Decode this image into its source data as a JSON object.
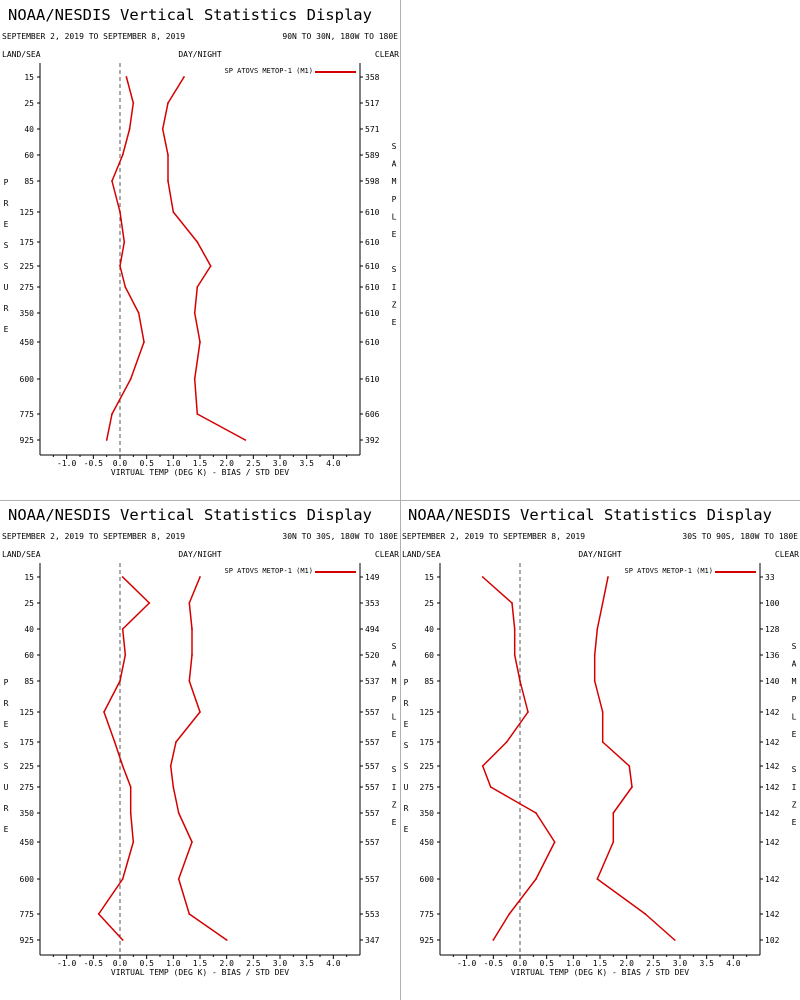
{
  "common": {
    "title": "NOAA/NESDIS Vertical Statistics Display",
    "date_range": "SEPTEMBER 2, 2019 TO SEPTEMBER 8, 2019",
    "land_sea": "LAND/SEA",
    "day_night": "DAY/NIGHT",
    "clear": "CLEAR",
    "legend": "SP ATOVS METOP-1 (M1)",
    "xlabel": "VIRTUAL TEMP (DEG K) - BIAS / STD DEV",
    "left_vertical": [
      "P",
      "R",
      "E",
      "S",
      "S",
      "U",
      "R",
      "E"
    ],
    "right_vertical": [
      "S",
      "A",
      "M",
      "P",
      "L",
      "E",
      "",
      "S",
      "I",
      "Z",
      "E"
    ],
    "series_color": "#d40000",
    "zero_line_color": "#555555"
  },
  "chart_data": [
    {
      "type": "line",
      "region": "90N TO 30N, 180W TO 180E",
      "pressure_levels": [
        15,
        25,
        40,
        60,
        85,
        125,
        175,
        225,
        275,
        350,
        450,
        600,
        775,
        925
      ],
      "pressure_labels": [
        "15",
        "25",
        "40",
        "60",
        "85",
        "125",
        "175",
        "225",
        "275",
        "350",
        "450",
        "600",
        "775",
        "925"
      ],
      "sample_size": [
        "358",
        "517",
        "571",
        "589",
        "598",
        "610",
        "610",
        "610",
        "610",
        "610",
        "610",
        "610",
        "606",
        "392"
      ],
      "x_ticks": [
        "-1.0",
        "-0.5",
        "0.0",
        "0.5",
        "1.0",
        "1.5",
        "2.0",
        "2.5",
        "3.0",
        "3.5",
        "4.0"
      ],
      "xlim": [
        -1.5,
        4.5
      ],
      "series": [
        {
          "name": "Bias",
          "values": [
            0.12,
            0.25,
            0.18,
            0.05,
            -0.15,
            0.0,
            0.08,
            0.0,
            0.1,
            0.35,
            0.45,
            0.2,
            -0.15,
            -0.25
          ]
        },
        {
          "name": "Std Dev",
          "values": [
            1.2,
            0.9,
            0.8,
            0.9,
            0.9,
            1.0,
            1.45,
            1.7,
            1.45,
            1.4,
            1.5,
            1.4,
            1.45,
            2.35
          ]
        }
      ]
    },
    {
      "type": "line",
      "region": "30N TO 30S, 180W TO 180E",
      "pressure_levels": [
        15,
        25,
        40,
        60,
        85,
        125,
        175,
        225,
        275,
        350,
        450,
        600,
        775,
        925
      ],
      "pressure_labels": [
        "15",
        "25",
        "40",
        "60",
        "85",
        "125",
        "175",
        "225",
        "275",
        "350",
        "450",
        "600",
        "775",
        "925"
      ],
      "sample_size": [
        "149",
        "353",
        "494",
        "520",
        "537",
        "557",
        "557",
        "557",
        "557",
        "557",
        "557",
        "557",
        "553",
        "347"
      ],
      "x_ticks": [
        "-1.0",
        "-0.5",
        "0.0",
        "0.5",
        "1.0",
        "1.5",
        "2.0",
        "2.5",
        "3.0",
        "3.5",
        "4.0"
      ],
      "xlim": [
        -1.5,
        4.5
      ],
      "series": [
        {
          "name": "Bias",
          "values": [
            0.05,
            0.55,
            0.05,
            0.1,
            0.0,
            -0.3,
            -0.1,
            0.05,
            0.2,
            0.2,
            0.25,
            0.05,
            -0.4,
            0.05
          ]
        },
        {
          "name": "Std Dev",
          "values": [
            1.5,
            1.3,
            1.35,
            1.35,
            1.3,
            1.5,
            1.05,
            0.95,
            1.0,
            1.1,
            1.35,
            1.1,
            1.3,
            2.0
          ]
        }
      ]
    },
    {
      "type": "line",
      "region": "30S TO 90S, 180W TO 180E",
      "pressure_levels": [
        15,
        25,
        40,
        60,
        85,
        125,
        175,
        225,
        275,
        350,
        450,
        600,
        775,
        925
      ],
      "pressure_labels": [
        "15",
        "25",
        "40",
        "60",
        "85",
        "125",
        "175",
        "225",
        "275",
        "350",
        "450",
        "600",
        "775",
        "925"
      ],
      "sample_size": [
        "33",
        "100",
        "128",
        "136",
        "140",
        "142",
        "142",
        "142",
        "142",
        "142",
        "142",
        "142",
        "142",
        "102"
      ],
      "x_ticks": [
        "-1.0",
        "-0.5",
        "0.0",
        "0.5",
        "1.0",
        "1.5",
        "2.0",
        "2.5",
        "3.0",
        "3.5",
        "4.0"
      ],
      "xlim": [
        -1.5,
        4.5
      ],
      "series": [
        {
          "name": "Bias",
          "values": [
            -0.7,
            -0.15,
            -0.1,
            -0.1,
            0.0,
            0.15,
            -0.25,
            -0.7,
            -0.55,
            0.3,
            0.65,
            0.3,
            -0.2,
            -0.5
          ]
        },
        {
          "name": "Std Dev",
          "values": [
            1.65,
            1.55,
            1.45,
            1.4,
            1.4,
            1.55,
            1.55,
            2.05,
            2.1,
            1.75,
            1.75,
            1.45,
            2.35,
            2.9
          ]
        }
      ]
    }
  ]
}
